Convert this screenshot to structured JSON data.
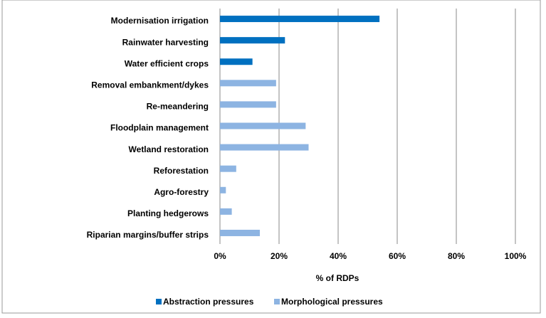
{
  "chart_data": {
    "type": "hbar",
    "categories": [
      "Modernisation irrigation",
      "Rainwater harvesting",
      "Water efficient crops",
      "Removal embankment/dykes",
      "Re-meandering",
      "Floodplain management",
      "Wetland restoration",
      "Reforestation",
      "Agro-forestry",
      "Planting hedgerows",
      "Riparian margins/buffer strips"
    ],
    "series": [
      {
        "name": "Abstraction pressures",
        "color": "#0070c0",
        "values": [
          54,
          22,
          11,
          null,
          null,
          null,
          null,
          null,
          null,
          null,
          null
        ]
      },
      {
        "name": "Morphological pressures",
        "color": "#8db4e2",
        "values": [
          null,
          null,
          null,
          19,
          19,
          29,
          30,
          5.5,
          2,
          4,
          13.5
        ]
      }
    ],
    "xlabel": "% of RDPs",
    "xlim": [
      0,
      100
    ],
    "xticks": [
      {
        "value": 0,
        "label": "0%"
      },
      {
        "value": 20,
        "label": "20%"
      },
      {
        "value": 40,
        "label": "40%"
      },
      {
        "value": 60,
        "label": "60%"
      },
      {
        "value": 80,
        "label": "80%"
      },
      {
        "value": 100,
        "label": "100%"
      }
    ],
    "grid": true,
    "legend": "bottom"
  }
}
